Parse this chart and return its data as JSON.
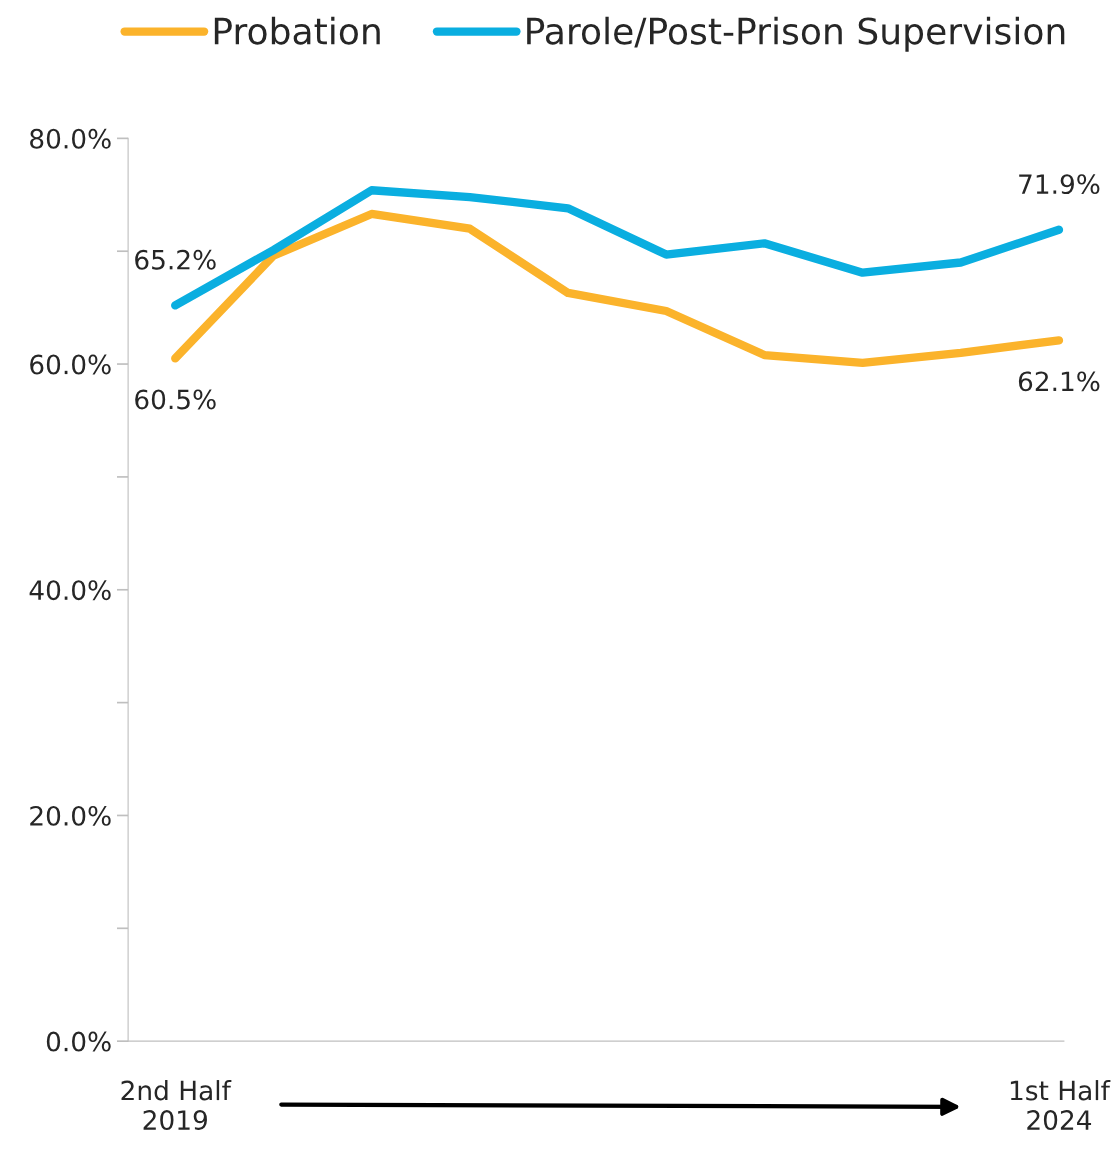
{
  "chart_data": {
    "type": "line",
    "categories": [
      "2nd Half\n2019",
      null,
      null,
      null,
      null,
      null,
      null,
      null,
      null,
      "1st Half\n2024"
    ],
    "series": [
      {
        "name": "Probation",
        "color": "#fbb32b",
        "values": [
          60.5,
          69.6,
          73.3,
          72.0,
          66.3,
          64.7,
          60.8,
          60.1,
          61.0,
          62.1
        ],
        "value_labels": [
          "60.5%",
          null,
          null,
          null,
          null,
          null,
          null,
          null,
          null,
          "62.1%"
        ]
      },
      {
        "name": "Parole/Post-Prison Supervision",
        "color": "#0aaee0",
        "values": [
          65.2,
          70.1,
          75.4,
          74.8,
          73.8,
          69.7,
          70.7,
          68.1,
          69.0,
          71.9
        ],
        "value_labels": [
          "65.2%",
          null,
          null,
          null,
          null,
          null,
          null,
          null,
          null,
          "71.9%"
        ]
      }
    ],
    "ylim": [
      0,
      80
    ],
    "yticks": [
      {
        "value": 0,
        "label": "0.0%"
      },
      {
        "value": 10,
        "label": null
      },
      {
        "value": 20,
        "label": "20.0%"
      },
      {
        "value": 30,
        "label": null
      },
      {
        "value": 40,
        "label": "40.0%"
      },
      {
        "value": 50,
        "label": null
      },
      {
        "value": 60,
        "label": "60.0%"
      },
      {
        "value": 70,
        "label": null
      },
      {
        "value": 80,
        "label": "80.0%"
      }
    ],
    "grid": false,
    "legend": "top",
    "marker": "none",
    "line_style": "solid"
  }
}
